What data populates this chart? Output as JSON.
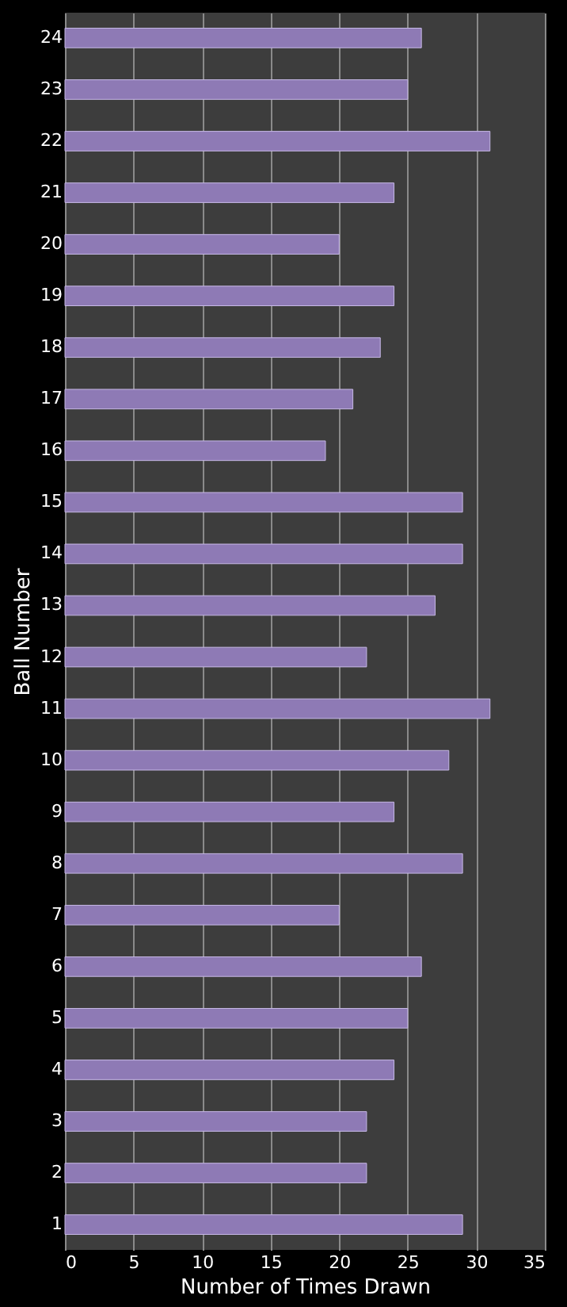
{
  "chart_data": {
    "type": "bar",
    "orientation": "horizontal",
    "xlabel": "Number  of Times Drawn",
    "ylabel": "Ball Number",
    "categories": [
      "24",
      "23",
      "22",
      "21",
      "20",
      "19",
      "18",
      "17",
      "16",
      "15",
      "14",
      "13",
      "12",
      "11",
      "10",
      "9",
      "8",
      "7",
      "6",
      "5",
      "4",
      "3",
      "2",
      "1"
    ],
    "values": [
      26,
      25,
      31,
      24,
      20,
      24,
      23,
      21,
      19,
      29,
      29,
      27,
      22,
      31,
      28,
      24,
      29,
      20,
      26,
      25,
      24,
      22,
      22,
      29
    ],
    "color": "#8e7ab5",
    "xlim": [
      0,
      35
    ],
    "xticks": [
      0,
      5,
      10,
      15,
      20,
      25,
      30,
      35
    ],
    "grid": "x"
  }
}
